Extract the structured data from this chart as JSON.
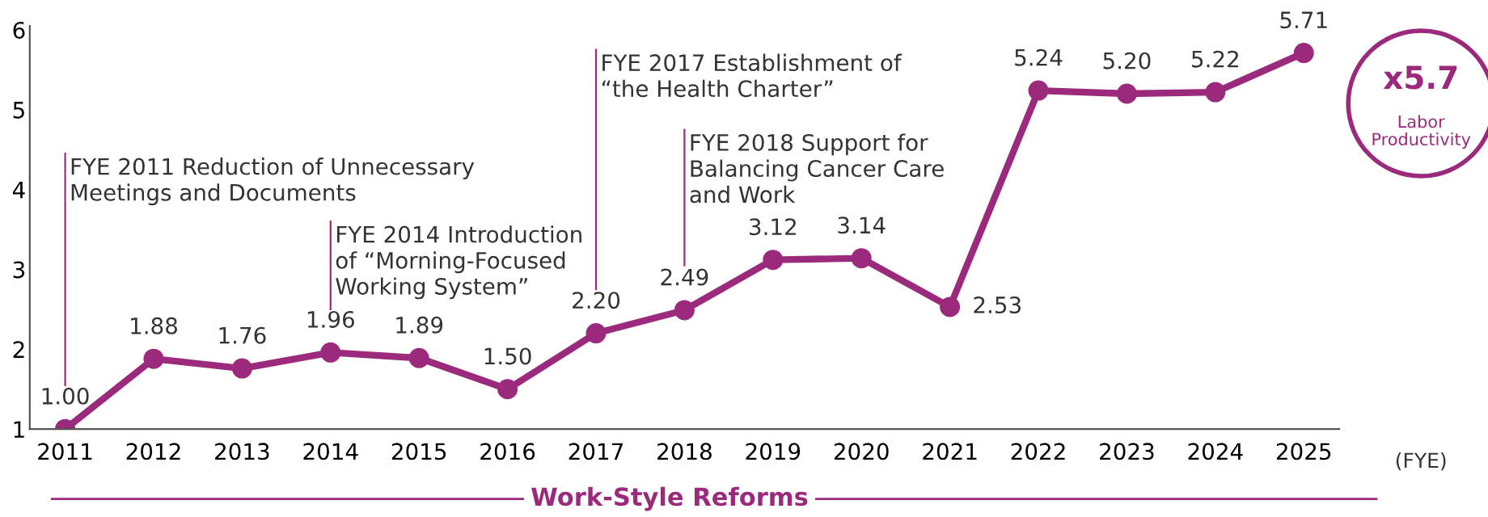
{
  "chart_data": {
    "type": "line",
    "categories": [
      "2011",
      "2012",
      "2013",
      "2014",
      "2015",
      "2016",
      "2017",
      "2018",
      "2019",
      "2020",
      "2021",
      "2022",
      "2023",
      "2024",
      "2025"
    ],
    "series": [
      {
        "color": "#9b2a7c",
        "values": [
          1.0,
          1.88,
          1.76,
          1.96,
          1.89,
          1.5,
          2.2,
          2.49,
          3.12,
          3.14,
          2.53,
          5.24,
          5.2,
          5.22,
          5.71
        ],
        "value_labels": [
          "1.00",
          "1.88",
          "1.76",
          "1.96",
          "1.89",
          "1.50",
          "2.20",
          "2.49",
          "3.12",
          "3.14",
          "2.53",
          "5.24",
          "5.20",
          "5.22",
          "5.71"
        ]
      }
    ],
    "xlabel": "(FYE)",
    "ylim": [
      1,
      6.05
    ],
    "yticks": [
      1,
      2,
      3,
      4,
      5,
      6
    ],
    "marker": "circle",
    "line_style": "solid",
    "grid": false,
    "annotations": [
      "FYE 2011 Reduction of Unnecessary\nMeetings and Documents",
      "FYE 2014 Introduction\nof “Morning-Focused\nWorking System”",
      "FYE 2017 Establishment of\n“the Health Charter”",
      "FYE 2018 Support for\nBalancing Cancer Care\nand Work",
      "x5.7\nLabor\nProductivity",
      "Work-Style Reforms"
    ]
  }
}
